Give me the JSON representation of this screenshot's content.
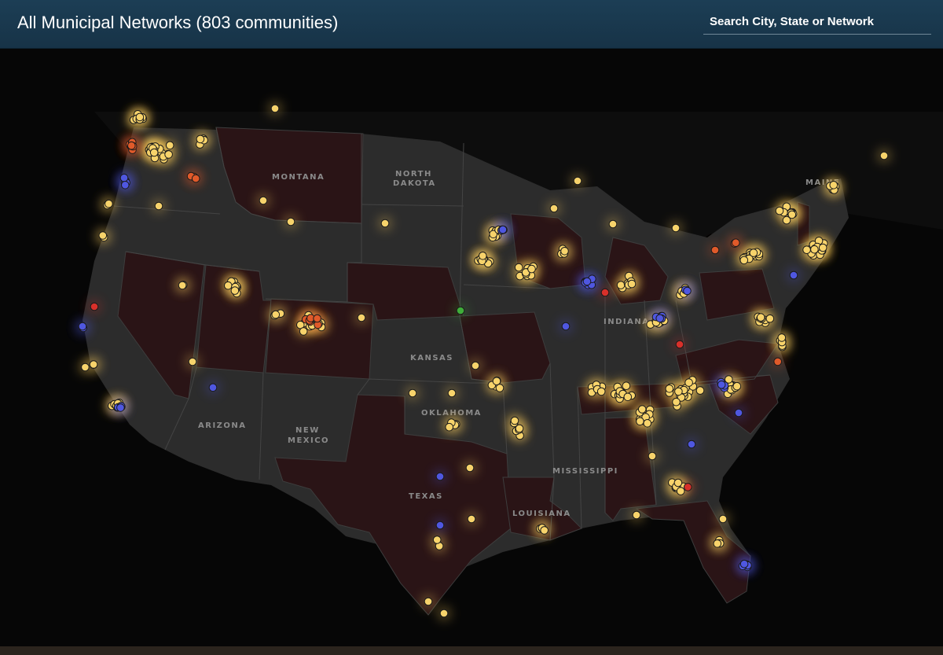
{
  "header": {
    "title": "All Municipal Networks (803 communities)",
    "search_placeholder": "Search City, State or Network"
  },
  "map": {
    "state_labels": {
      "montana": "MONTANA",
      "north_dakota": [
        "NORTH",
        "DAKOTA"
      ],
      "kansas": "KANSAS",
      "oklahoma": "OKLAHOMA",
      "arizona": "ARIZONA",
      "new_mexico": [
        "NEW",
        "MEXICO"
      ],
      "texas": "TEXAS",
      "louisiana": "LOUISIANA",
      "mississippi": "MISSISSIPPI",
      "indiana": "INDIANA",
      "maine": "MAINE"
    },
    "marker_colors": {
      "network": "#f7d36b",
      "cooperative": "#4f57e0",
      "restricted": "#e05a2a",
      "blocked": "#d8302a",
      "other": "#3fae3a"
    },
    "state_fill_colors": {
      "restricted_state": "#2a1416",
      "open_state": "#2c2c2c"
    },
    "glow_color": "#f2c65b"
  }
}
